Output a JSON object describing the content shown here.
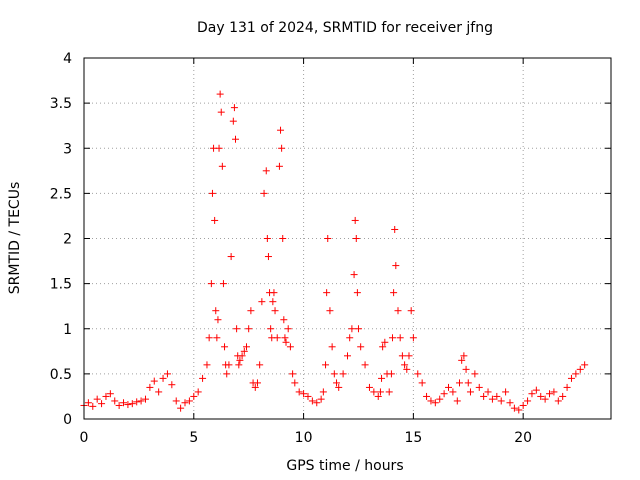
{
  "chart_data": {
    "type": "scatter",
    "title": "Day 131 of 2024, SRMTID for receiver jfng",
    "xlabel": "GPS time / hours",
    "ylabel": "SRMTID / TECUs",
    "xlim": [
      0,
      24
    ],
    "ylim": [
      0,
      4
    ],
    "x_ticks": [
      0,
      5,
      10,
      15,
      20
    ],
    "y_ticks": [
      0,
      0.5,
      1,
      1.5,
      2,
      2.5,
      3,
      3.5,
      4
    ],
    "x_tick_labels": [
      "0",
      "5",
      "10",
      "15",
      "20"
    ],
    "y_tick_labels": [
      "0",
      "0.5",
      "1",
      "1.5",
      "2",
      "2.5",
      "3",
      "3.5",
      "4"
    ],
    "grid": true,
    "marker": "plus",
    "color": "#ff0000",
    "series": [
      {
        "name": "SRMTID",
        "x": [
          0.0,
          0.2,
          0.4,
          0.6,
          0.8,
          1.0,
          1.2,
          1.4,
          1.6,
          1.8,
          2.0,
          2.2,
          2.4,
          2.6,
          2.8,
          3.0,
          3.2,
          3.4,
          3.6,
          3.8,
          4.0,
          4.2,
          4.4,
          4.6,
          4.8,
          5.0,
          5.2,
          5.4,
          5.6,
          5.7,
          5.8,
          5.85,
          5.9,
          5.95,
          6.0,
          6.05,
          6.1,
          6.15,
          6.2,
          6.25,
          6.3,
          6.35,
          6.4,
          6.45,
          6.5,
          6.6,
          6.7,
          6.8,
          6.85,
          6.9,
          6.95,
          7.0,
          7.05,
          7.1,
          7.2,
          7.3,
          7.4,
          7.5,
          7.6,
          7.7,
          7.8,
          7.9,
          8.0,
          8.1,
          8.2,
          8.3,
          8.35,
          8.4,
          8.45,
          8.5,
          8.55,
          8.6,
          8.65,
          8.7,
          8.8,
          8.9,
          8.95,
          9.0,
          9.05,
          9.1,
          9.15,
          9.2,
          9.3,
          9.4,
          9.5,
          9.6,
          9.8,
          10.0,
          10.2,
          10.4,
          10.6,
          10.8,
          10.9,
          11.0,
          11.05,
          11.1,
          11.2,
          11.3,
          11.4,
          11.5,
          11.6,
          11.8,
          12.0,
          12.1,
          12.2,
          12.3,
          12.35,
          12.4,
          12.45,
          12.5,
          12.6,
          12.8,
          13.0,
          13.2,
          13.4,
          13.5,
          13.55,
          13.6,
          13.7,
          13.8,
          13.9,
          14.0,
          14.05,
          14.1,
          14.15,
          14.2,
          14.3,
          14.4,
          14.5,
          14.6,
          14.7,
          14.8,
          14.9,
          15.0,
          15.2,
          15.4,
          15.6,
          15.8,
          16.0,
          16.2,
          16.4,
          16.6,
          16.8,
          17.0,
          17.1,
          17.2,
          17.3,
          17.4,
          17.5,
          17.6,
          17.8,
          18.0,
          18.2,
          18.4,
          18.6,
          18.8,
          19.0,
          19.2,
          19.4,
          19.6,
          19.8,
          20.0,
          20.2,
          20.4,
          20.6,
          20.8,
          21.0,
          21.2,
          21.4,
          21.6,
          21.8,
          22.0,
          22.2,
          22.4,
          22.6,
          22.8
        ],
        "y": [
          0.15,
          0.18,
          0.14,
          0.22,
          0.17,
          0.25,
          0.28,
          0.2,
          0.15,
          0.18,
          0.16,
          0.17,
          0.19,
          0.2,
          0.22,
          0.35,
          0.42,
          0.3,
          0.45,
          0.5,
          0.38,
          0.2,
          0.12,
          0.18,
          0.2,
          0.25,
          0.3,
          0.45,
          0.6,
          0.9,
          1.5,
          2.5,
          3.0,
          2.2,
          1.2,
          0.9,
          1.1,
          3.0,
          3.6,
          3.4,
          2.8,
          1.5,
          0.8,
          0.6,
          0.5,
          0.6,
          1.8,
          3.3,
          3.45,
          3.1,
          1.0,
          0.7,
          0.6,
          0.65,
          0.7,
          0.75,
          0.8,
          1.0,
          1.2,
          0.4,
          0.35,
          0.4,
          0.6,
          1.3,
          2.5,
          2.75,
          2.0,
          1.8,
          1.4,
          1.0,
          0.9,
          1.3,
          1.4,
          1.2,
          0.9,
          2.8,
          3.2,
          3.0,
          2.0,
          1.1,
          0.9,
          0.85,
          1.0,
          0.8,
          0.5,
          0.4,
          0.3,
          0.28,
          0.25,
          0.2,
          0.18,
          0.22,
          0.3,
          0.6,
          1.4,
          2.0,
          1.2,
          0.8,
          0.5,
          0.4,
          0.35,
          0.5,
          0.7,
          0.9,
          1.0,
          1.6,
          2.2,
          2.0,
          1.4,
          1.0,
          0.8,
          0.6,
          0.35,
          0.3,
          0.25,
          0.3,
          0.45,
          0.8,
          0.85,
          0.5,
          0.3,
          0.5,
          0.9,
          1.4,
          2.1,
          1.7,
          1.2,
          0.9,
          0.7,
          0.6,
          0.55,
          0.7,
          1.2,
          0.9,
          0.5,
          0.4,
          0.25,
          0.2,
          0.18,
          0.22,
          0.28,
          0.35,
          0.3,
          0.2,
          0.4,
          0.65,
          0.7,
          0.55,
          0.4,
          0.3,
          0.5,
          0.35,
          0.25,
          0.3,
          0.22,
          0.25,
          0.2,
          0.3,
          0.18,
          0.12,
          0.1,
          0.15,
          0.2,
          0.28,
          0.32,
          0.25,
          0.22,
          0.28,
          0.3,
          0.2,
          0.25,
          0.35,
          0.45,
          0.5,
          0.55,
          0.6
        ]
      }
    ]
  }
}
